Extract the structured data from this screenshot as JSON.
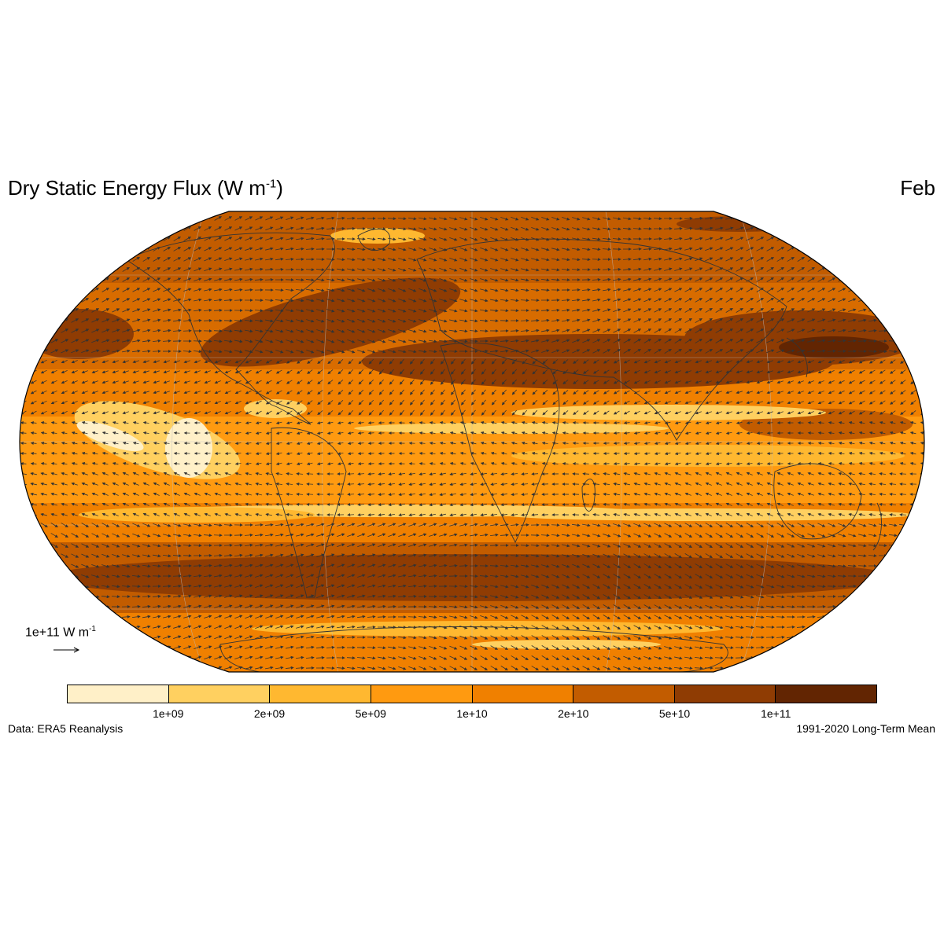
{
  "header": {
    "title": "Dry Static Energy Flux (W m",
    "title_sup": "-1",
    "title_close": ")",
    "month": "Feb"
  },
  "map": {
    "projection": "Robinson",
    "palette": {
      "lightest": "#fff0c8",
      "light": "#ffd060",
      "mid_light": "#ffb830",
      "mid": "#ff9a10",
      "mid_dark": "#f08000",
      "dark": "#c25c00",
      "darker": "#8f3c03",
      "darkest": "#622502"
    }
  },
  "reference_vector": {
    "label": "1e+11 W m",
    "label_sup": "-1"
  },
  "colorbar": {
    "labels": [
      "1e+09",
      "2e+09",
      "5e+09",
      "1e+10",
      "2e+10",
      "5e+10",
      "1e+11"
    ],
    "colors": [
      "#fff0c8",
      "#ffd060",
      "#ffb830",
      "#ff9a10",
      "#f08000",
      "#c25c00",
      "#8f3c03",
      "#622502"
    ]
  },
  "footer": {
    "source": "Data: ERA5 Reanalysis",
    "period": "1991-2020 Long-Term Mean"
  }
}
